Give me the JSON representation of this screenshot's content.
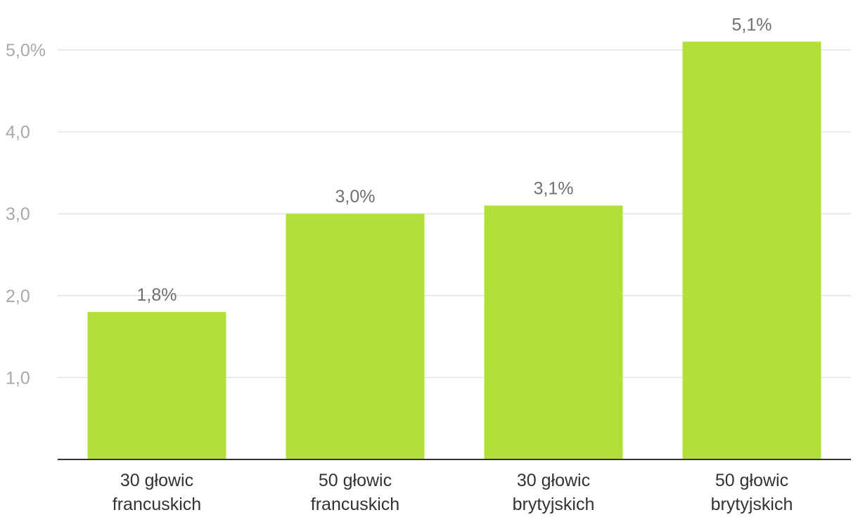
{
  "chart_data": {
    "type": "bar",
    "title": "",
    "xlabel": "",
    "ylabel": "",
    "categories": [
      [
        "30 głowic",
        "francuskich"
      ],
      [
        "50 głowic",
        "francuskich"
      ],
      [
        "30 głowic",
        "brytyjskich"
      ],
      [
        "50 głowic",
        "brytyjskich"
      ]
    ],
    "values": [
      1.8,
      3.0,
      3.1,
      5.1
    ],
    "value_labels": [
      "1,8%",
      "3,0%",
      "3,1%",
      "5,1%"
    ],
    "yticks": [
      1.0,
      2.0,
      3.0,
      4.0,
      5.0
    ],
    "ytick_labels": [
      "1,0",
      "2,0",
      "3,0",
      "4,0",
      "5,0%"
    ],
    "ylim": [
      0,
      5.1
    ],
    "grid": true,
    "legend": "none",
    "bar_color": "#b2df3a"
  }
}
